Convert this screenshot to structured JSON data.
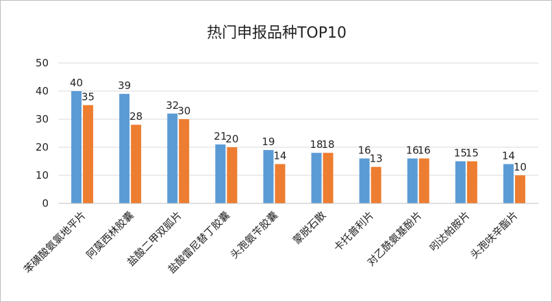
{
  "chart_data": {
    "type": "bar",
    "title": "热门申报品种TOP10",
    "xlabel": "",
    "ylabel": "",
    "ylim": [
      0,
      50
    ],
    "yticks": [
      0,
      10,
      20,
      30,
      40,
      50
    ],
    "grid": true,
    "legend": "none",
    "categories": [
      "苯磺酸氨氯地平片",
      "阿莫西林胶囊",
      "盐酸二甲双胍片",
      "盐酸雷尼替丁胶囊",
      "头孢氨苄胶囊",
      "蒙脱石散",
      "卡托普利片",
      "对乙酰氨基酚片",
      "吲达帕胺片",
      "头孢呋辛酯片"
    ],
    "series": [
      {
        "color": "#5B9BD5",
        "values": [
          40,
          39,
          32,
          21,
          19,
          18,
          16,
          16,
          15,
          14
        ]
      },
      {
        "color": "#ED7D31",
        "values": [
          35,
          28,
          30,
          20,
          14,
          18,
          13,
          16,
          15,
          10
        ]
      }
    ]
  }
}
